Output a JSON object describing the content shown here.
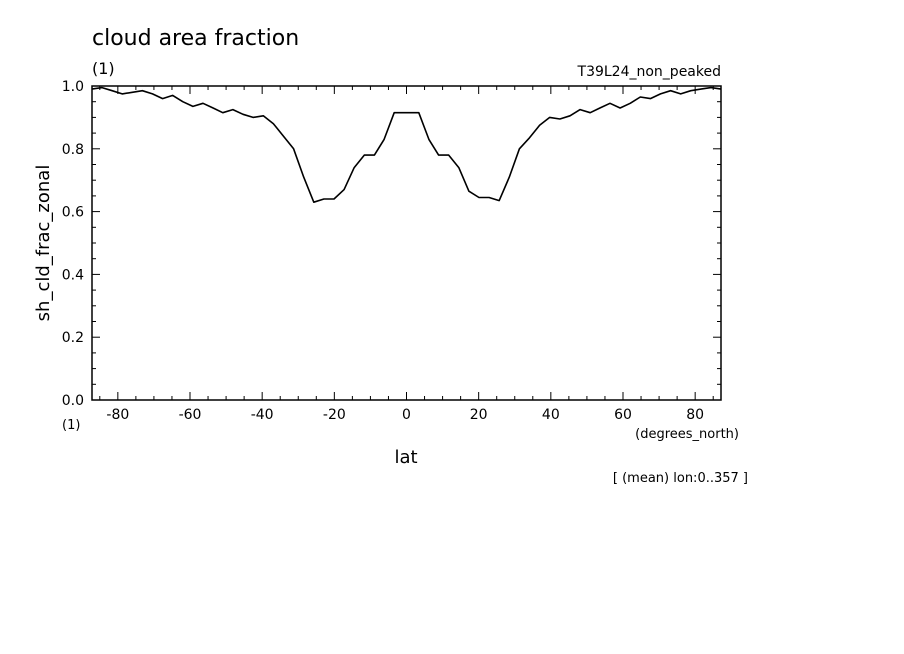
{
  "chart_data": {
    "type": "line",
    "title": "cloud area fraction",
    "units_label": "(1)",
    "experiment": "T39L24_non_peaked",
    "ylabel": "sh_cld_frac_zonal",
    "y_units": "(1)",
    "xlabel": "lat",
    "x_units": "(degrees_north)",
    "footnote": "[ (mean) lon:0..357 ]",
    "xlim": [
      -87.16,
      87.16
    ],
    "ylim": [
      0.0,
      1.0
    ],
    "x_ticks": [
      -80,
      -60,
      -40,
      -20,
      0,
      20,
      40,
      60,
      80
    ],
    "x_tick_labels": [
      "-80",
      "-60",
      "-40",
      "-20",
      "0",
      "20",
      "40",
      "60",
      "80"
    ],
    "y_ticks": [
      0.0,
      0.2,
      0.4,
      0.6,
      0.8,
      1.0
    ],
    "y_tick_labels": [
      "0.0",
      "0.2",
      "0.4",
      "0.6",
      "0.8",
      "1.0"
    ],
    "legend": "none",
    "grid": false,
    "series": [
      {
        "x": [
          -87.2,
          -84.4,
          -81.6,
          -78.8,
          -76.0,
          -73.2,
          -70.4,
          -67.6,
          -64.8,
          -62.0,
          -59.2,
          -56.4,
          -53.6,
          -50.9,
          -48.1,
          -45.3,
          -42.5,
          -39.7,
          -36.9,
          -34.1,
          -31.3,
          -28.5,
          -25.7,
          -22.9,
          -20.1,
          -17.3,
          -14.5,
          -11.7,
          -8.9,
          -6.2,
          -3.4,
          -0.6,
          0.6,
          3.4,
          6.2,
          8.9,
          11.7,
          14.5,
          17.3,
          20.1,
          22.9,
          25.7,
          28.5,
          31.3,
          34.1,
          36.9,
          39.7,
          42.5,
          45.3,
          48.1,
          50.9,
          53.6,
          56.4,
          59.2,
          62.0,
          64.8,
          67.6,
          70.4,
          73.2,
          76.0,
          78.8,
          81.6,
          84.4,
          87.2
        ],
        "y": [
          0.99,
          0.995,
          0.985,
          0.975,
          0.98,
          0.985,
          0.975,
          0.96,
          0.97,
          0.95,
          0.935,
          0.945,
          0.93,
          0.915,
          0.925,
          0.91,
          0.9,
          0.905,
          0.88,
          0.84,
          0.8,
          0.71,
          0.63,
          0.64,
          0.64,
          0.67,
          0.74,
          0.78,
          0.78,
          0.83,
          0.915,
          0.915,
          0.915,
          0.915,
          0.83,
          0.78,
          0.78,
          0.74,
          0.665,
          0.645,
          0.645,
          0.635,
          0.71,
          0.8,
          0.835,
          0.875,
          0.9,
          0.895,
          0.905,
          0.925,
          0.915,
          0.93,
          0.945,
          0.93,
          0.945,
          0.965,
          0.96,
          0.975,
          0.985,
          0.975,
          0.985,
          0.99,
          0.995,
          0.99
        ]
      }
    ]
  }
}
